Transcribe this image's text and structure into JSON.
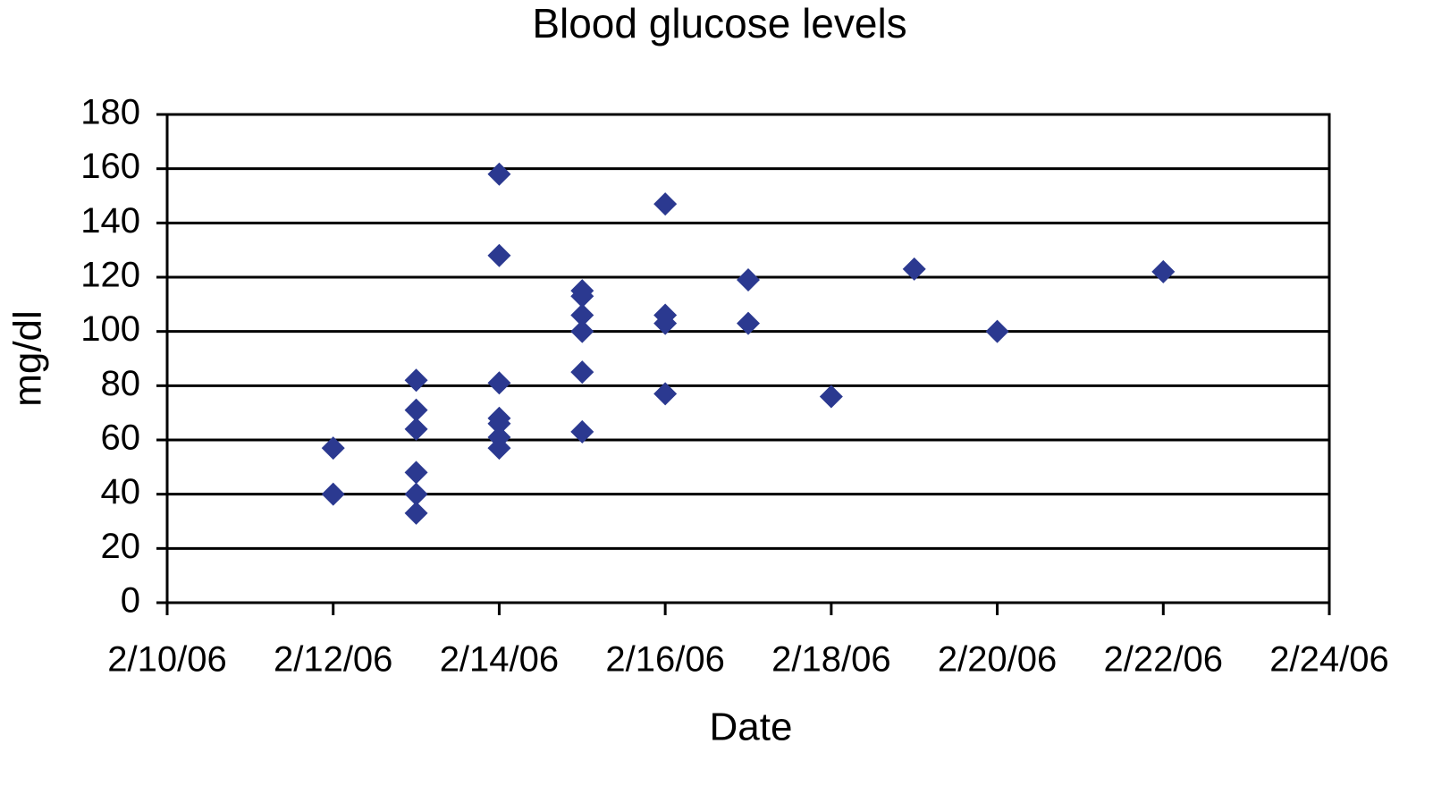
{
  "chart_data": {
    "type": "scatter",
    "title": "Blood glucose levels",
    "x_label": "Date",
    "y_label": "mg/dl",
    "x": [
      "2/12/06",
      "2/12/06",
      "2/13/06",
      "2/13/06",
      "2/13/06",
      "2/13/06",
      "2/13/06",
      "2/13/06",
      "2/14/06",
      "2/14/06",
      "2/14/06",
      "2/14/06",
      "2/14/06",
      "2/14/06",
      "2/14/06",
      "2/15/06",
      "2/15/06",
      "2/15/06",
      "2/15/06",
      "2/15/06",
      "2/15/06",
      "2/16/06",
      "2/16/06",
      "2/16/06",
      "2/16/06",
      "2/17/06",
      "2/17/06",
      "2/18/06",
      "2/19/06",
      "2/20/06",
      "2/22/06"
    ],
    "values": [
      57,
      40,
      82,
      71,
      64,
      48,
      40,
      33,
      158,
      128,
      81,
      68,
      66,
      61,
      57,
      115,
      113,
      106,
      100,
      85,
      63,
      147,
      106,
      103,
      77,
      119,
      103,
      76,
      123,
      100,
      122
    ],
    "color": "#2b3990",
    "xlim": [
      "2/10/06",
      "2/24/06"
    ],
    "xticks": [
      "2/10/06",
      "2/12/06",
      "2/14/06",
      "2/16/06",
      "2/18/06",
      "2/20/06",
      "2/22/06",
      "2/24/06"
    ],
    "ylim": [
      0,
      180
    ],
    "yticks": [
      0,
      20,
      40,
      60,
      80,
      100,
      120,
      140,
      160,
      180
    ],
    "grid": true
  }
}
